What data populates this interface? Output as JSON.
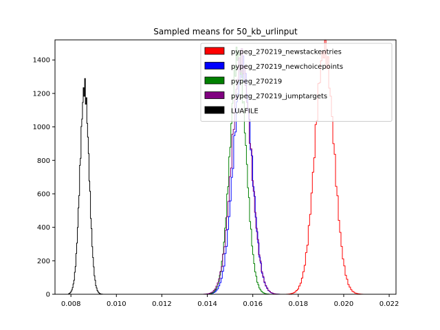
{
  "chart_data": {
    "type": "histogram",
    "title": "Sampled means for 50_kb_urlinput",
    "xlabel": "",
    "ylabel": "",
    "xlim": [
      0.0073,
      0.0223
    ],
    "ylim": [
      0,
      1520
    ],
    "x_ticks": [
      {
        "value": 0.008,
        "label": "0.008"
      },
      {
        "value": 0.01,
        "label": "0.010"
      },
      {
        "value": 0.012,
        "label": "0.012"
      },
      {
        "value": 0.014,
        "label": "0.014"
      },
      {
        "value": 0.016,
        "label": "0.016"
      },
      {
        "value": 0.018,
        "label": "0.018"
      },
      {
        "value": 0.02,
        "label": "0.020"
      },
      {
        "value": 0.022,
        "label": "0.022"
      }
    ],
    "y_ticks": [
      {
        "value": 0,
        "label": "0"
      },
      {
        "value": 200,
        "label": "200"
      },
      {
        "value": 400,
        "label": "400"
      },
      {
        "value": 600,
        "label": "600"
      },
      {
        "value": 800,
        "label": "800"
      },
      {
        "value": 1000,
        "label": "1000"
      },
      {
        "value": 1200,
        "label": "1200"
      },
      {
        "value": 1400,
        "label": "1400"
      }
    ],
    "grid": false,
    "legend_position": "top-right",
    "series": [
      {
        "name": "pypeg_270219_newstackentries",
        "color": "#ff0000",
        "mean": 0.01915,
        "std": 0.00042,
        "peak": 1460,
        "bins": 70,
        "lo": 0.0173,
        "hi": 0.0215
      },
      {
        "name": "pypeg_270219_newchoicepoints",
        "color": "#0000ff",
        "mean": 0.01555,
        "std": 0.0004,
        "peak": 1360,
        "bins": 70,
        "lo": 0.0136,
        "hi": 0.0175
      },
      {
        "name": "pypeg_270219",
        "color": "#008000",
        "mean": 0.01535,
        "std": 0.00035,
        "peak": 1440,
        "bins": 70,
        "lo": 0.0138,
        "hi": 0.017
      },
      {
        "name": "pypeg_270219_jumptargets",
        "color": "#800080",
        "mean": 0.0155,
        "std": 0.00042,
        "peak": 1400,
        "bins": 70,
        "lo": 0.0135,
        "hi": 0.0176
      },
      {
        "name": "LUAFILE",
        "color": "#000000",
        "mean": 0.0086,
        "std": 0.0002,
        "peak": 1235,
        "bins": 50,
        "lo": 0.0079,
        "hi": 0.0095
      }
    ]
  }
}
